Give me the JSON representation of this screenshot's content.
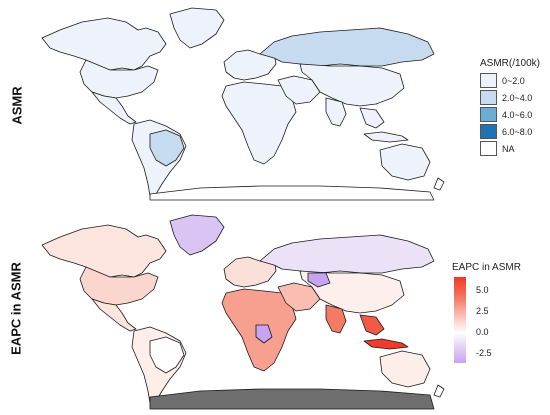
{
  "panels": {
    "top": {
      "row_label": "ASMR",
      "legend": {
        "title": "ASMR(/100k)",
        "items": [
          {
            "label": "0~2.0",
            "color": "#eef3fb"
          },
          {
            "label": "2.0~4.0",
            "color": "#c6dbef"
          },
          {
            "label": "4.0~6.0",
            "color": "#6aaed6"
          },
          {
            "label": "6.0~8.0",
            "color": "#2171b5"
          },
          {
            "label": "NA",
            "color": "#ffffff"
          }
        ]
      }
    },
    "bottom": {
      "row_label": "EAPC in ASMR",
      "legend": {
        "title": "EAPC in ASMR",
        "ticks": [
          "5.0",
          "2.5",
          "0.0",
          "-2.5"
        ]
      }
    }
  },
  "colors": {
    "outline": "#1a1a1a",
    "asmr_low": "#eef3fb",
    "asmr_mid": "#c6dbef",
    "antarctica_eapc": "#6e6e6e",
    "eapc_high": "#f03a2a",
    "eapc_mid": "#f7a090",
    "eapc_low": "#fce4df",
    "eapc_neg": "#c8a4f0"
  }
}
